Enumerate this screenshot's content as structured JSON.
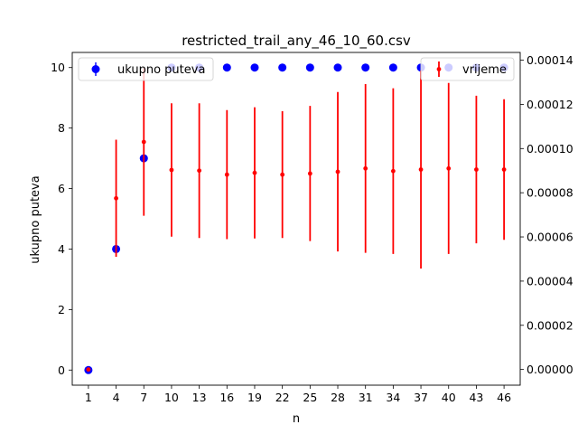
{
  "chart_data": {
    "type": "scatter",
    "title": "restricted_trail_any_46_10_60.csv",
    "xlabel": "n",
    "ylabel": "ukupno puteva",
    "x": [
      1,
      4,
      7,
      10,
      13,
      16,
      19,
      22,
      25,
      28,
      31,
      34,
      37,
      40,
      43,
      46
    ],
    "xticks": [
      "1",
      "4",
      "7",
      "10",
      "13",
      "16",
      "19",
      "22",
      "25",
      "28",
      "31",
      "34",
      "37",
      "40",
      "43",
      "46"
    ],
    "xlim": [
      -0.75,
      47.75
    ],
    "left_axis": {
      "ylim": [
        -0.5,
        10.5
      ],
      "ticks": [
        0,
        2,
        4,
        6,
        8,
        10
      ],
      "tick_labels": [
        "0",
        "2",
        "4",
        "6",
        "8",
        "10"
      ]
    },
    "right_axis": {
      "ylim": [
        -7.1e-06,
        0.0001435
      ],
      "ticks": [
        0,
        2e-05,
        4e-05,
        6e-05,
        8e-05,
        0.0001,
        0.00012,
        0.00014
      ],
      "tick_labels": [
        "0.00000",
        "0.00002",
        "0.00004",
        "0.00006",
        "0.00008",
        "0.00010",
        "0.00012",
        "0.00014"
      ]
    },
    "series": [
      {
        "name": "ukupno puteva",
        "axis": "left",
        "color": "#0000ff",
        "values": [
          0,
          4,
          7,
          10,
          10,
          10,
          10,
          10,
          10,
          10,
          10,
          10,
          10,
          10,
          10,
          10
        ],
        "errors": [
          0,
          0,
          0,
          0,
          0,
          0,
          0,
          0,
          0,
          0,
          0,
          0,
          0,
          0,
          0,
          0
        ]
      },
      {
        "name": "vrijeme",
        "axis": "right",
        "color": "#ff0000",
        "values": [
          0,
          7.75e-05,
          0.000103,
          9.03e-05,
          9e-05,
          8.82e-05,
          8.9e-05,
          8.82e-05,
          8.87e-05,
          8.95e-05,
          9.1e-05,
          8.98e-05,
          9.05e-05,
          9.1e-05,
          9.05e-05,
          9.05e-05
        ],
        "errors": [
          0,
          2.65e-05,
          3.34e-05,
          3.02e-05,
          3.05e-05,
          2.92e-05,
          2.97e-05,
          2.87e-05,
          3.06e-05,
          3.61e-05,
          3.82e-05,
          3.75e-05,
          4.48e-05,
          3.87e-05,
          3.34e-05,
          3.18e-05
        ]
      }
    ],
    "legend": {
      "left": {
        "placement": "upper-left",
        "entry": "ukupno puteva"
      },
      "right": {
        "placement": "upper-right",
        "entry": "vrijeme"
      }
    },
    "grid": false
  }
}
